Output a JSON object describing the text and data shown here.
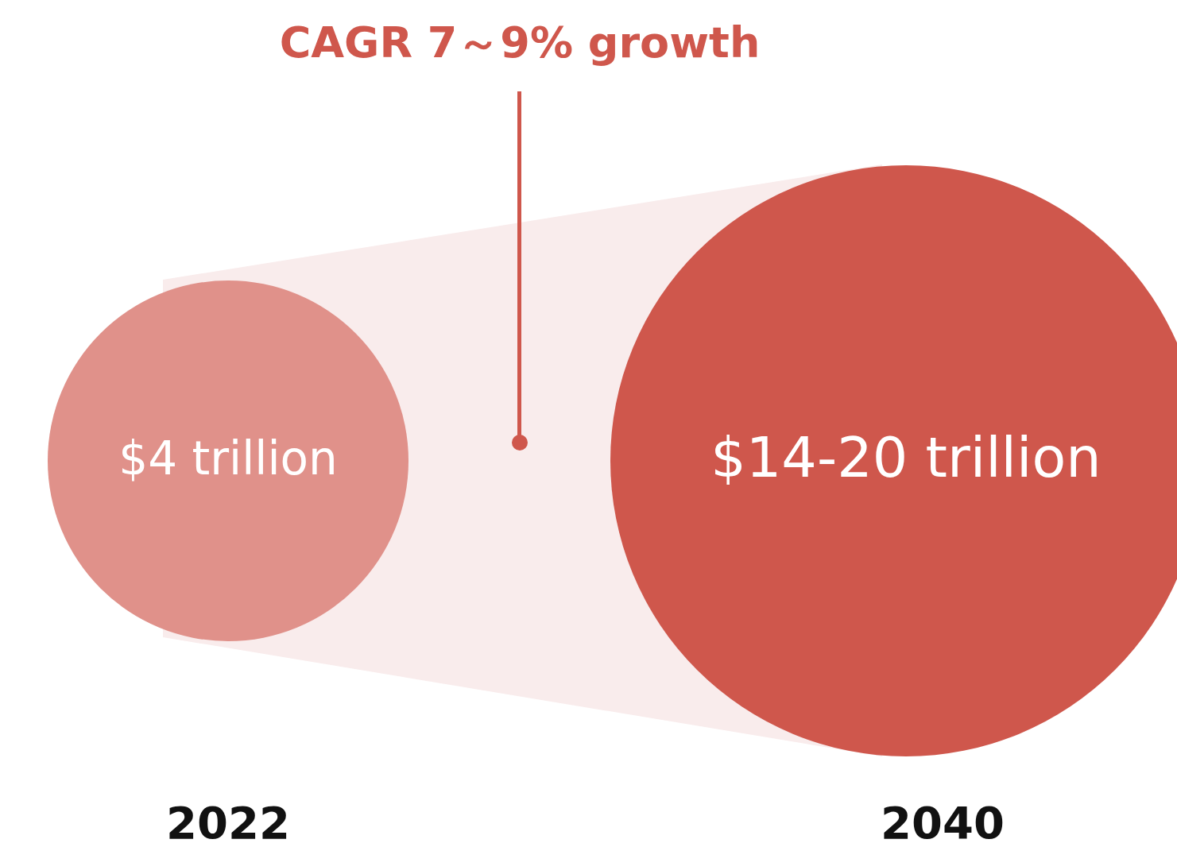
{
  "chart_data": {
    "type": "other",
    "values": [
      4,
      null
    ],
    "annotations": [
      "CAGR 7～9% growth"
    ],
    "categories": [
      "2022",
      "2040"
    ],
    "value_labels": [
      "$4 trillion",
      "$14-20 trillion"
    ],
    "colors": [
      "#e0918a",
      "#cf574c"
    ]
  }
}
